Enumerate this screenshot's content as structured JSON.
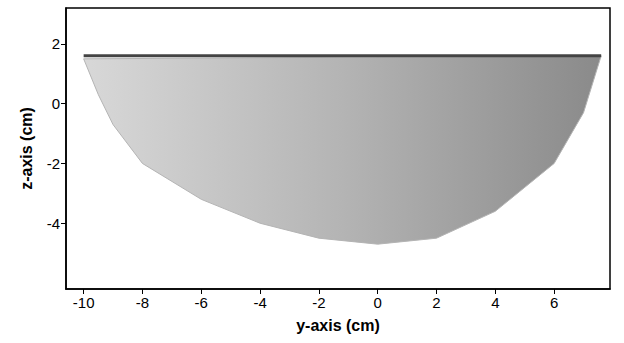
{
  "chart_data": {
    "type": "area",
    "x_label": "y-axis (cm)",
    "y_label": "z-axis (cm)",
    "xlim": [
      -10.6,
      7.9
    ],
    "xticks": [
      -10,
      -8,
      -6,
      -4,
      -2,
      0,
      2,
      4,
      6
    ],
    "ylim": [
      -6.2,
      3.2
    ],
    "yticks": [
      -4,
      -2,
      0,
      2
    ],
    "grid": false,
    "series": [
      {
        "type": "area",
        "color": "#b4b4b4",
        "x": [
          -10,
          -9.5,
          -9,
          -8,
          -6,
          -4,
          -2,
          0,
          2,
          4,
          6,
          7,
          7.6
        ],
        "values": [
          1.5,
          0.3,
          -0.7,
          -2.0,
          -3.2,
          -4.0,
          -4.5,
          -4.7,
          -4.5,
          -3.6,
          -2.0,
          -0.3,
          1.6
        ]
      },
      {
        "type": "line",
        "color": "#444444",
        "x": [
          -10,
          7.6
        ],
        "values": [
          1.6,
          1.6
        ]
      }
    ]
  }
}
